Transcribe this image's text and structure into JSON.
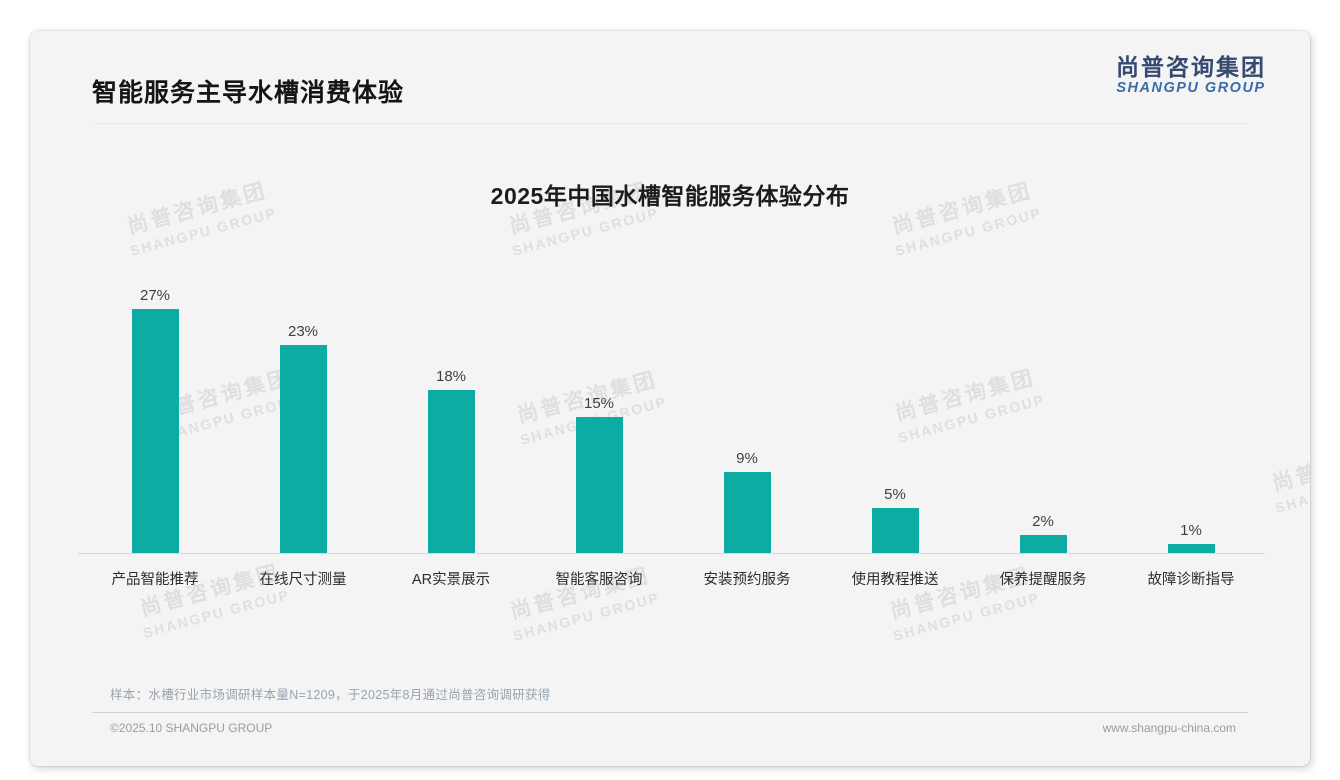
{
  "page": {
    "slide_title": "智能服务主导水槽消费体验",
    "sample_note": "样本：水槽行业市场调研样本量N=1209，于2025年8月通过尚普咨询调研获得",
    "footer_left": "©2025.10 SHANGPU GROUP",
    "footer_right": "www.shangpu-china.com"
  },
  "logo": {
    "cn": "尚普咨询集团",
    "en": "SHANGPU GROUP"
  },
  "watermark": {
    "cn": "尚普咨询集团",
    "en": "SHANGPU GROUP"
  },
  "colors": {
    "bar": "#0daca2",
    "logo_cn": "#36496e",
    "logo_en": "#3b6ca9",
    "card_bg": "#f4f4f5"
  },
  "chart_data": {
    "type": "bar",
    "title": "2025年中国水槽智能服务体验分布",
    "categories": [
      "产品智能推荐",
      "在线尺寸测量",
      "AR实景展示",
      "智能客服咨询",
      "安装预约服务",
      "使用教程推送",
      "保养提醒服务",
      "故障诊断指导"
    ],
    "values": [
      27,
      23,
      18,
      15,
      9,
      5,
      2,
      1
    ],
    "labels": [
      "27%",
      "23%",
      "18%",
      "15%",
      "9%",
      "5%",
      "2%",
      "1%"
    ],
    "unit": "%",
    "ylim": [
      0,
      30
    ],
    "grid": false,
    "legend": "none",
    "bar_color": "#0daca2",
    "xlabel": "",
    "ylabel": ""
  }
}
